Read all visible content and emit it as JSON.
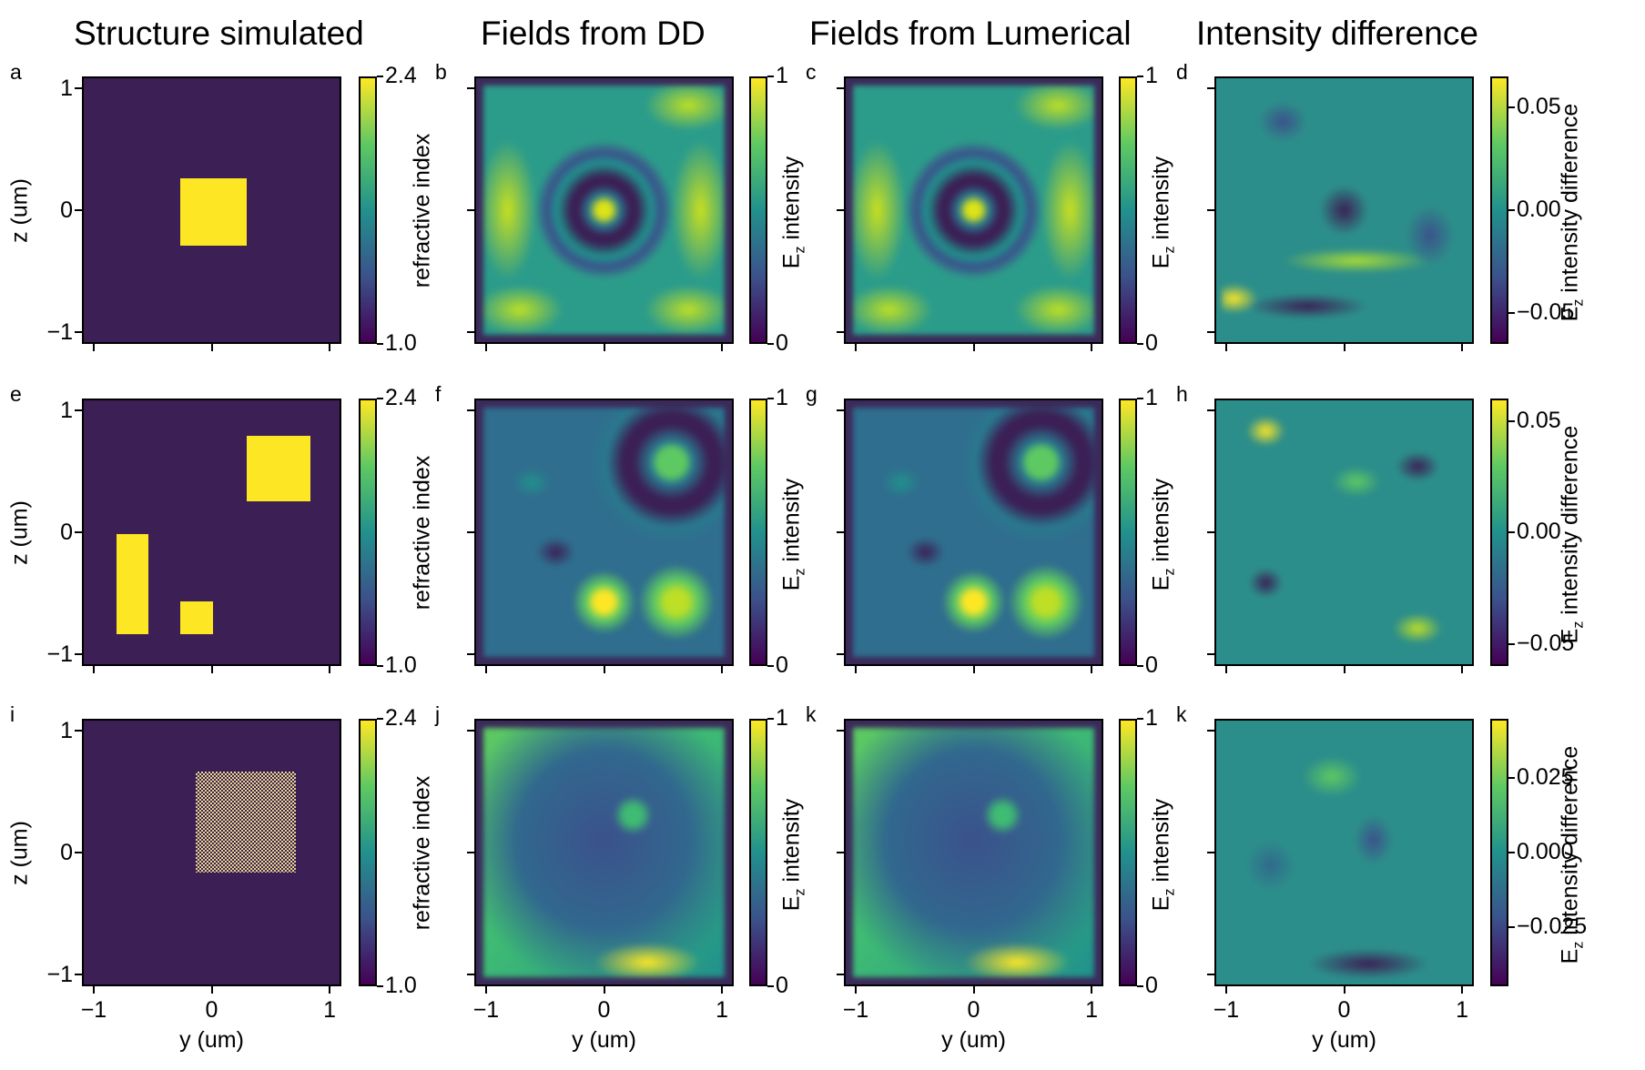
{
  "column_titles": [
    "Structure simulated",
    "Fields from DD",
    "Fields from Lumerical",
    "Intensity difference"
  ],
  "panel_letters": [
    [
      "a",
      "b",
      "c",
      "d"
    ],
    [
      "e",
      "f",
      "g",
      "h"
    ],
    [
      "i",
      "j",
      "k",
      "k"
    ]
  ],
  "axis": {
    "xlabel": "y (um)",
    "ylabel": "z (um)",
    "tick_labels": [
      "−1",
      "0",
      "1"
    ]
  },
  "colorbars": {
    "structure": {
      "label": "refractive index",
      "ticks": [
        "1.0",
        "2.4"
      ],
      "range": [
        1.0,
        2.4
      ]
    },
    "field": {
      "label_main": "E",
      "label_sub": "z",
      "label_rest": " intensity",
      "ticks": [
        "0",
        "1"
      ],
      "range": [
        0,
        1
      ]
    },
    "diff_rows": [
      {
        "label_main": "E",
        "label_sub": "z",
        "label_rest": " intensity difference",
        "ticks": [
          "−0.05",
          "0.00",
          "0.05"
        ],
        "range": [
          -0.065,
          0.065
        ]
      },
      {
        "label_main": "E",
        "label_sub": "z",
        "label_rest": " intensity difference",
        "ticks": [
          "−0.05",
          "0.00",
          "0.05"
        ],
        "range": [
          -0.06,
          0.06
        ]
      },
      {
        "label_main": "E",
        "label_sub": "z",
        "label_rest": " intensity difference",
        "ticks": [
          "−0.025",
          "0.000",
          "0.025"
        ],
        "range": [
          -0.045,
          0.045
        ]
      }
    ]
  },
  "colors": {
    "viridis_dark": "#440154",
    "background_structure": "#3b1f55",
    "inclusion": "#fde725",
    "frame": "#3b2a5a"
  },
  "chart_data": {
    "type": "heatmap",
    "grid": "3x4 panels",
    "x_range_um": [
      -1.1,
      1.1
    ],
    "z_range_um": [
      -1.1,
      1.1
    ],
    "structures": [
      {
        "row": 1,
        "inclusions": [
          {
            "y": [
              -0.28,
              0.28
            ],
            "z": [
              -0.28,
              0.28
            ],
            "n": 2.4
          }
        ]
      },
      {
        "row": 2,
        "inclusions": [
          {
            "y": [
              0.28,
              0.82
            ],
            "z": [
              0.27,
              0.81
            ],
            "n": 2.4
          },
          {
            "y": [
              -0.82,
              -0.55
            ],
            "z": [
              -0.82,
              0.0
            ],
            "n": 2.4
          },
          {
            "y": [
              -0.28,
              -0.0
            ],
            "z": [
              -0.82,
              -0.55
            ],
            "n": 2.4
          }
        ]
      },
      {
        "row": 3,
        "inclusions": [
          {
            "y": [
              -0.15,
              0.7
            ],
            "z": [
              -0.15,
              0.68
            ],
            "n": "checkerboard 1.0/2.4"
          }
        ]
      }
    ]
  }
}
